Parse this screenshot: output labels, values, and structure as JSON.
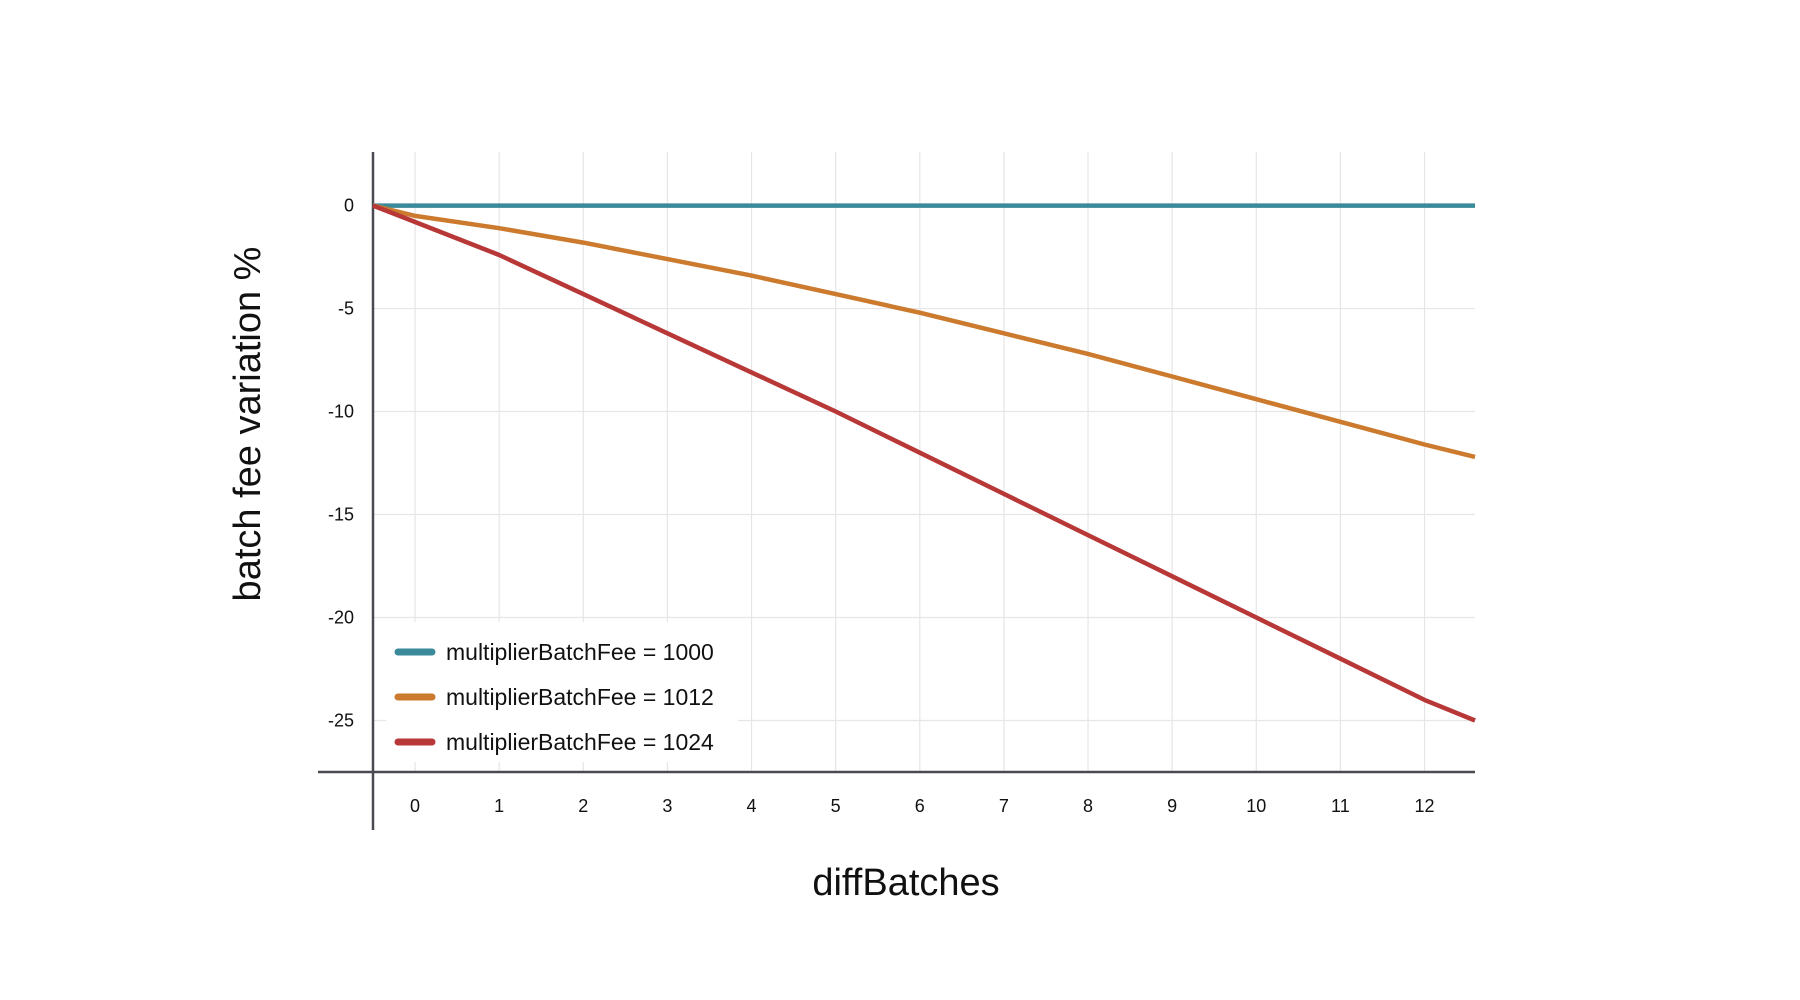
{
  "chart_data": {
    "type": "line",
    "title": "",
    "xlabel": "diffBatches",
    "ylabel": "batch fee variation %",
    "xlim": [
      -0.5,
      12.6
    ],
    "ylim": [
      -27.5,
      2.6
    ],
    "x_ticks": [
      0,
      1,
      2,
      3,
      4,
      5,
      6,
      7,
      8,
      9,
      10,
      11,
      12
    ],
    "y_ticks": [
      0,
      -5,
      -10,
      -15,
      -20,
      -25
    ],
    "x_tick_labels": [
      "0",
      "1",
      "2",
      "3",
      "4",
      "5",
      "6",
      "7",
      "8",
      "9",
      "10",
      "11",
      "12"
    ],
    "y_tick_labels": [
      "0",
      "-5",
      "-10",
      "-15",
      "-20",
      "-25"
    ],
    "grid": true,
    "legend_position": "bottom-left",
    "series": [
      {
        "name": "multiplierBatchFee = 1000",
        "color": "#3a8a9a",
        "x": [
          -0.5,
          0,
          1,
          2,
          3,
          4,
          5,
          6,
          7,
          8,
          9,
          10,
          11,
          12,
          12.6
        ],
        "y": [
          0,
          0,
          0,
          0,
          0,
          0,
          0,
          0,
          0,
          0,
          0,
          0,
          0,
          0,
          0
        ]
      },
      {
        "name": "multiplierBatchFee = 1012",
        "color": "#cc7a2e",
        "x": [
          -0.5,
          0,
          1,
          2,
          3,
          4,
          5,
          6,
          7,
          8,
          9,
          10,
          11,
          12,
          12.6
        ],
        "y": [
          0,
          -0.5,
          -1.1,
          -1.8,
          -2.6,
          -3.4,
          -4.3,
          -5.2,
          -6.2,
          -7.2,
          -8.3,
          -9.4,
          -10.5,
          -11.6,
          -12.2
        ]
      },
      {
        "name": "multiplierBatchFee = 1024",
        "color": "#b83838",
        "x": [
          -0.5,
          0,
          1,
          2,
          3,
          4,
          5,
          6,
          7,
          8,
          9,
          10,
          11,
          12,
          12.6
        ],
        "y": [
          0,
          -0.8,
          -2.4,
          -4.3,
          -6.2,
          -8.1,
          -10.0,
          -12.0,
          -14.0,
          -16.0,
          -18.0,
          -20.0,
          -22.0,
          -24.0,
          -25.0
        ]
      }
    ]
  }
}
